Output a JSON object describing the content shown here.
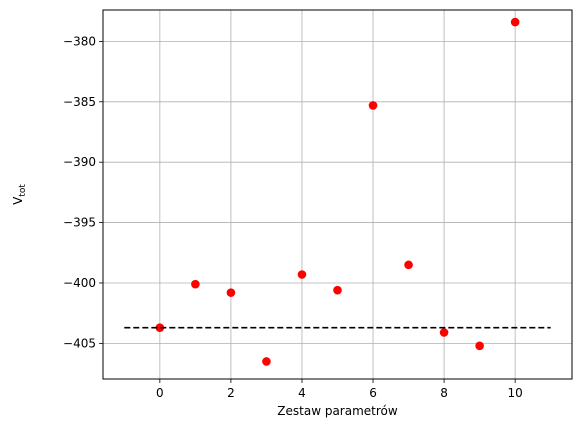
{
  "chart_data": {
    "type": "scatter",
    "title": "",
    "xlabel": "Zestaw parametrów",
    "ylabel": {
      "main": "V",
      "sub": "tot"
    },
    "xlim": [
      -1.6,
      11.6
    ],
    "ylim": [
      -407.95,
      -377.4
    ],
    "xticks": [
      0,
      2,
      4,
      6,
      8,
      10
    ],
    "yticks": [
      -405,
      -400,
      -395,
      -390,
      -385,
      -380
    ],
    "xtick_labels": [
      "0",
      "2",
      "4",
      "6",
      "8",
      "10"
    ],
    "ytick_labels": [
      "−405",
      "−400",
      "−395",
      "−390",
      "−385",
      "−380"
    ],
    "grid": true,
    "series": [
      {
        "kind": "points",
        "color": "#ff0000",
        "x": [
          0,
          1,
          2,
          3,
          4,
          5,
          6,
          7,
          8,
          9,
          10
        ],
        "y": [
          -403.7,
          -400.1,
          -400.8,
          -406.5,
          -399.3,
          -400.6,
          -385.3,
          -398.5,
          -404.1,
          -405.2,
          -378.4
        ]
      },
      {
        "kind": "reference-line",
        "style": "dashed",
        "color": "#000000",
        "x": [
          -1,
          11
        ],
        "y": [
          -403.7,
          -403.7
        ]
      }
    ]
  }
}
